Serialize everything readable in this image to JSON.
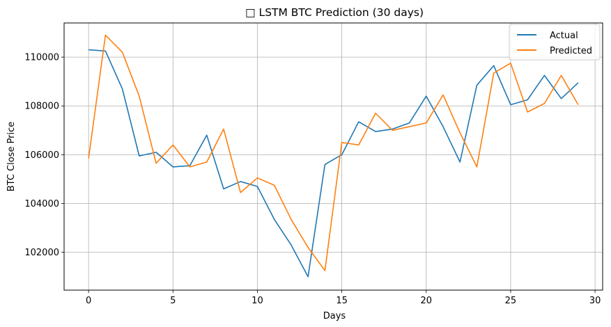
{
  "chart_data": {
    "type": "line",
    "title": "□ LSTM BTC Prediction (30 days)",
    "xlabel": "Days",
    "ylabel": "BTC Close Price",
    "x": [
      0,
      1,
      2,
      3,
      4,
      5,
      6,
      7,
      8,
      9,
      10,
      11,
      12,
      13,
      14,
      15,
      16,
      17,
      18,
      19,
      20,
      21,
      22,
      23,
      24,
      25,
      26,
      27,
      28,
      29
    ],
    "xticks": [
      0,
      5,
      10,
      15,
      20,
      25,
      30
    ],
    "yticks": [
      102000,
      104000,
      106000,
      108000,
      110000
    ],
    "xlim": [
      -1.45,
      30.45
    ],
    "ylim": [
      100450,
      111400
    ],
    "grid": true,
    "legend_position": "top-right",
    "series": [
      {
        "name": "Actual",
        "color": "#1f77b4",
        "values": [
          110300,
          110250,
          108700,
          105950,
          106100,
          105500,
          105550,
          106800,
          104600,
          104900,
          104700,
          103350,
          102300,
          101000,
          105600,
          106000,
          107350,
          106950,
          107050,
          107300,
          108400,
          107150,
          105700,
          108850,
          109650,
          108050,
          108250,
          109250,
          108300,
          108950
        ]
      },
      {
        "name": "Predicted",
        "color": "#ff7f0e",
        "values": [
          105850,
          110900,
          110200,
          108400,
          105650,
          106400,
          105500,
          105700,
          107050,
          104450,
          105050,
          104750,
          103350,
          102200,
          101250,
          106500,
          106400,
          107700,
          107000,
          107150,
          107300,
          108450,
          106900,
          105500,
          109350,
          109750,
          107750,
          108100,
          109250,
          108050
        ]
      }
    ]
  }
}
